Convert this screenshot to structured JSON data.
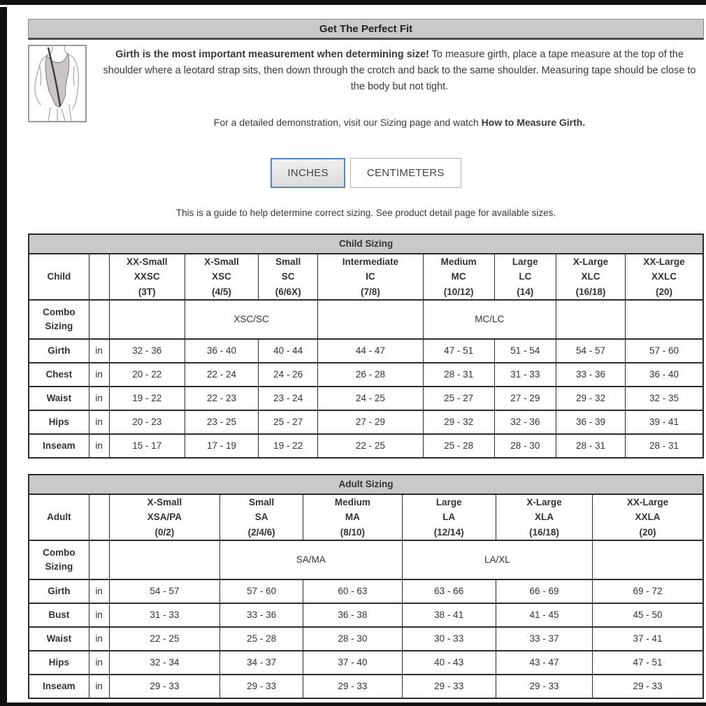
{
  "header": {
    "title": "Get The Perfect Fit"
  },
  "intro": {
    "illustration": "leotard-girth-measurement-diagram",
    "bold": "Girth is the most important measurement when determining size!",
    "text": " To measure girth, place a tape measure at the top of the shoulder where a leotard strap sits, then down through the crotch and back to the same shoulder. Measuring tape should be close to the body but not tight.",
    "demo_prefix": "For a detailed demonstration, visit our Sizing page and watch ",
    "demo_bold": "How to Measure Girth."
  },
  "unit_toggle": {
    "inches_label": "INCHES",
    "centimeters_label": "CENTIMETERS",
    "selected": "INCHES",
    "selected_border_color": "#5b87b8"
  },
  "note": "This is a guide to help determine correct sizing. See product detail page for available sizes.",
  "colors": {
    "bar_bg": "#c9c9c9",
    "table_border": "#2d2d2d",
    "text": "#333333"
  },
  "child_table": {
    "title": "Child Sizing",
    "corner_label": "Child",
    "combo_label": "Combo Sizing",
    "unit": "in",
    "columns": [
      {
        "name": "XX-Small",
        "code": "XXSC",
        "range": "(3T)"
      },
      {
        "name": "X-Small",
        "code": "XSC",
        "range": "(4/5)"
      },
      {
        "name": "Small",
        "code": "SC",
        "range": "(6/6X)"
      },
      {
        "name": "Intermediate",
        "code": "IC",
        "range": "(7/8)"
      },
      {
        "name": "Medium",
        "code": "MC",
        "range": "(10/12)"
      },
      {
        "name": "Large",
        "code": "LC",
        "range": "(14)"
      },
      {
        "name": "X-Large",
        "code": "XLC",
        "range": "(16/18)"
      },
      {
        "name": "XX-Large",
        "code": "XXLC",
        "range": "(20)"
      }
    ],
    "combo_cells": [
      {
        "text": "",
        "span": 1
      },
      {
        "text": "XSC/SC",
        "span": 2
      },
      {
        "text": "",
        "span": 1
      },
      {
        "text": "MC/LC",
        "span": 2
      },
      {
        "text": "",
        "span": 1
      },
      {
        "text": "",
        "span": 1
      }
    ],
    "rows": [
      {
        "label": "Girth",
        "unit": "in",
        "values": [
          "32 - 36",
          "36 - 40",
          "40 - 44",
          "44 - 47",
          "47 - 51",
          "51 - 54",
          "54 - 57",
          "57 - 60"
        ]
      },
      {
        "label": "Chest",
        "unit": "in",
        "values": [
          "20 - 22",
          "22 - 24",
          "24 - 26",
          "26 - 28",
          "28 - 31",
          "31 - 33",
          "33 - 36",
          "36 - 40"
        ]
      },
      {
        "label": "Waist",
        "unit": "in",
        "values": [
          "19 - 22",
          "22 - 23",
          "23 - 24",
          "24 - 25",
          "25 - 27",
          "27 - 29",
          "29 - 32",
          "32 - 35"
        ]
      },
      {
        "label": "Hips",
        "unit": "in",
        "values": [
          "20 - 23",
          "23 - 25",
          "25 - 27",
          "27 - 29",
          "29 - 32",
          "32 - 36",
          "36 - 39",
          "39 - 41"
        ]
      },
      {
        "label": "Inseam",
        "unit": "in",
        "values": [
          "15 - 17",
          "17 - 19",
          "19 - 22",
          "22 - 25",
          "25 - 28",
          "28 - 30",
          "28 - 31",
          "28 - 31"
        ]
      }
    ]
  },
  "adult_table": {
    "title": "Adult Sizing",
    "corner_label": "Adult",
    "combo_label": "Combo Sizing",
    "unit": "in",
    "columns": [
      {
        "name": "X-Small",
        "code": "XSA/PA",
        "range": "(0/2)"
      },
      {
        "name": "Small",
        "code": "SA",
        "range": "(2/4/6)"
      },
      {
        "name": "Medium",
        "code": "MA",
        "range": "(8/10)"
      },
      {
        "name": "Large",
        "code": "LA",
        "range": "(12/14)"
      },
      {
        "name": "X-Large",
        "code": "XLA",
        "range": "(16/18)"
      },
      {
        "name": "XX-Large",
        "code": "XXLA",
        "range": "(20)"
      }
    ],
    "combo_cells": [
      {
        "text": "",
        "span": 1
      },
      {
        "text": "SA/MA",
        "span": 2
      },
      {
        "text": "LA/XL",
        "span": 2
      },
      {
        "text": "",
        "span": 1
      }
    ],
    "rows": [
      {
        "label": "Girth",
        "unit": "in",
        "values": [
          "54 - 57",
          "57 - 60",
          "60 - 63",
          "63 - 66",
          "66 - 69",
          "69 - 72"
        ]
      },
      {
        "label": "Bust",
        "unit": "in",
        "values": [
          "31 - 33",
          "33 - 36",
          "36 - 38",
          "38 - 41",
          "41 - 45",
          "45 - 50"
        ]
      },
      {
        "label": "Waist",
        "unit": "in",
        "values": [
          "22 - 25",
          "25 - 28",
          "28 - 30",
          "30 - 33",
          "33 - 37",
          "37 - 41"
        ]
      },
      {
        "label": "Hips",
        "unit": "in",
        "values": [
          "32 - 34",
          "34 - 37",
          "37 - 40",
          "40 - 43",
          "43 - 47",
          "47 - 51"
        ]
      },
      {
        "label": "Inseam",
        "unit": "in",
        "values": [
          "29 - 33",
          "29 - 33",
          "29 - 33",
          "29 - 33",
          "29 - 33",
          "29 - 33"
        ]
      }
    ]
  }
}
